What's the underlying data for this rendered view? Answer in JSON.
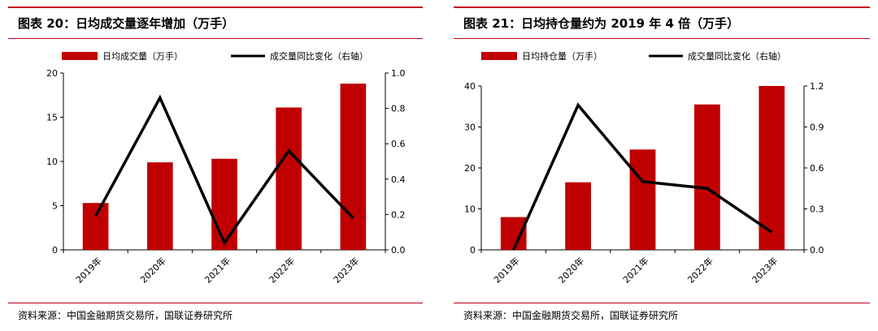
{
  "chart_data": [
    {
      "type": "bar",
      "title": "图表 20：日均成交量逐年增加（万手）",
      "categories": [
        "2019年",
        "2020年",
        "2021年",
        "2022年",
        "2023年"
      ],
      "series": [
        {
          "name": "日均成交量（万手）",
          "type": "bar",
          "axis": "left",
          "values": [
            5.3,
            9.9,
            10.3,
            16.1,
            18.8
          ]
        },
        {
          "name": "成交量同比变化（右轴）",
          "type": "line",
          "axis": "right",
          "values": [
            0.19,
            0.86,
            0.04,
            0.56,
            0.18
          ]
        }
      ],
      "yticks": [
        "0",
        "5",
        "10",
        "15",
        "20"
      ],
      "y2ticks": [
        "0.0",
        "0.2",
        "0.4",
        "0.6",
        "0.8",
        "1.0"
      ],
      "ylim": [
        0,
        20
      ],
      "y2lim": [
        0,
        1.0
      ],
      "legend": "top",
      "source": "资料来源：中国金融期货交易所，国联证券研究所"
    },
    {
      "type": "bar",
      "title": "图表 21：日均持仓量约为 2019 年 4 倍（万手）",
      "categories": [
        "2019年",
        "2020年",
        "2021年",
        "2022年",
        "2023年"
      ],
      "series": [
        {
          "name": "日均持仓量（万手）",
          "type": "bar",
          "axis": "left",
          "values": [
            8.0,
            16.5,
            24.5,
            35.5,
            40.0
          ]
        },
        {
          "name": "成交量同比变化（右轴）",
          "type": "line",
          "axis": "right",
          "values": [
            0.0,
            1.06,
            0.5,
            0.45,
            0.13
          ]
        }
      ],
      "yticks": [
        "0",
        "10",
        "20",
        "30",
        "40"
      ],
      "y2ticks": [
        "0.0",
        "0.3",
        "0.6",
        "0.9",
        "1.2"
      ],
      "ylim": [
        0,
        40
      ],
      "y2lim": [
        0,
        1.2
      ],
      "legend": "top",
      "source": "资料来源：中国金融期货交易所，国联证券研究所"
    }
  ],
  "colors": {
    "bar": "#c00000",
    "line": "#000000",
    "rule": "#c0001a"
  }
}
